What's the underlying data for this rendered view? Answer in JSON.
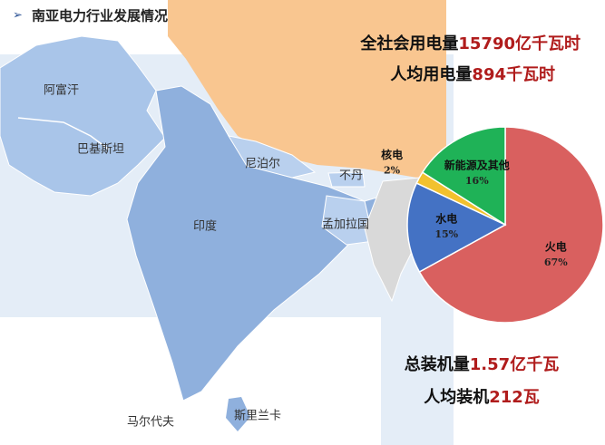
{
  "title": "南亚电力行业发展情况",
  "map_labels": [
    "阿富汗",
    "巴基斯坦",
    "尼泊尔",
    "不丹",
    "印度",
    "孟加拉国",
    "马尔代夫",
    "斯里兰卡"
  ],
  "stats": [
    {
      "label": "全社会用电量",
      "value": "15790亿千瓦时"
    },
    {
      "label": "人均用电量",
      "value": "894千瓦时"
    },
    {
      "label": "总装机量",
      "value": "1.57亿千瓦"
    },
    {
      "label": "人均装机",
      "value": "212瓦"
    }
  ],
  "chart_data": {
    "type": "pie",
    "categories": [
      "火电",
      "水电",
      "核电",
      "新能源及其他"
    ],
    "values": [
      67,
      15,
      2,
      16
    ],
    "value_labels": [
      "67%",
      "15%",
      "2%",
      "16%"
    ],
    "colors": [
      "#d9605f",
      "#4472c4",
      "#f2c12e",
      "#1fb257"
    ]
  }
}
